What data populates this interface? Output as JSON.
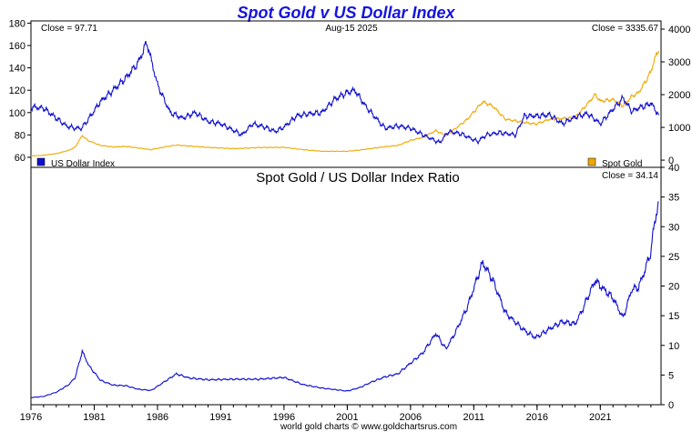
{
  "chart_data": [
    {
      "type": "line",
      "title": "Spot Gold v US Dollar Index",
      "date_label": "Aug-15  2025",
      "left_close_label": "Close = 97.71",
      "right_close_label": "Close = 3335.67",
      "series": [
        {
          "name": "US Dollar Index",
          "axis": "left",
          "color": "#1010d0",
          "x": [
            1976.0,
            1977.0,
            1978.0,
            1978.8,
            1979.5,
            1980.0,
            1980.6,
            1981.5,
            1982.5,
            1983.5,
            1984.5,
            1985.15,
            1986.0,
            1987.0,
            1988.0,
            1989.0,
            1990.0,
            1991.0,
            1992.7,
            1993.5,
            1994.5,
            1995.3,
            1996.0,
            1997.0,
            1998.0,
            1999.0,
            2000.0,
            2001.0,
            2001.6,
            2002.5,
            2003.5,
            2004.0,
            2005.0,
            2006.0,
            2007.0,
            2008.3,
            2009.0,
            2010.0,
            2011.3,
            2012.0,
            2013.0,
            2014.3,
            2015.0,
            2016.0,
            2017.0,
            2018.0,
            2019.0,
            2020.0,
            2021.0,
            2022.0,
            2022.8,
            2023.5,
            2024.0,
            2024.8,
            2025.0,
            2025.3,
            2025.62
          ],
          "values": [
            105,
            104,
            95,
            88,
            86,
            86,
            95,
            110,
            120,
            131,
            145,
            163,
            125,
            100,
            95,
            100,
            92,
            90,
            80,
            90,
            87,
            83,
            87,
            97,
            99,
            100,
            112,
            118,
            120,
            105,
            92,
            86,
            88,
            86,
            80,
            73,
            83,
            81,
            74,
            80,
            82,
            80,
            97,
            97,
            98,
            90,
            96,
            99,
            90,
            103,
            113,
            101,
            104,
            107,
            109,
            103,
            97.71
          ]
        },
        {
          "name": "Spot Gold",
          "axis": "right",
          "color": "#f0a800",
          "x": [
            1976.0,
            1977.0,
            1978.0,
            1979.0,
            1979.5,
            1980.05,
            1980.5,
            1981.5,
            1982.5,
            1983.5,
            1984.5,
            1985.5,
            1986.5,
            1987.5,
            1988.5,
            1990.0,
            1992.0,
            1994.0,
            1996.0,
            1997.5,
            1999.0,
            2001.0,
            2002.0,
            2003.0,
            2004.0,
            2005.0,
            2006.0,
            2007.0,
            2008.0,
            2008.8,
            2009.5,
            2010.5,
            2011.7,
            2012.5,
            2013.5,
            2015.0,
            2015.9,
            2017.0,
            2018.0,
            2019.0,
            2019.5,
            2020.6,
            2021.0,
            2022.0,
            2022.8,
            2023.5,
            2024.0,
            2024.5,
            2025.0,
            2025.3,
            2025.62
          ],
          "values": [
            130,
            150,
            200,
            300,
            400,
            750,
            600,
            450,
            400,
            420,
            370,
            320,
            400,
            460,
            430,
            390,
            350,
            385,
            390,
            320,
            270,
            270,
            310,
            360,
            410,
            450,
            600,
            700,
            900,
            750,
            950,
            1250,
            1780,
            1650,
            1250,
            1150,
            1100,
            1250,
            1270,
            1300,
            1500,
            2000,
            1800,
            1850,
            1650,
            1950,
            2050,
            2350,
            2700,
            3100,
            3335.67
          ]
        }
      ],
      "x_range": [
        1976.0,
        2025.8
      ],
      "y_left": {
        "ylim": [
          51,
          182
        ],
        "ticks": [
          "60",
          "80",
          "100",
          "120",
          "140",
          "160",
          "180"
        ]
      },
      "y_right": {
        "ylim": [
          -220,
          4250
        ],
        "ticks": [
          "0",
          "1000",
          "2000",
          "3000",
          "4000"
        ]
      },
      "legend": [
        {
          "label": "US Dollar Index",
          "position": "bottom-left"
        },
        {
          "label": "Spot Gold",
          "position": "bottom-right"
        }
      ],
      "grid": false
    },
    {
      "type": "line",
      "title": "Spot Gold  /  US Dollar Index Ratio",
      "close_label": "Close = 34.14",
      "series": [
        {
          "color": "#1010d0",
          "x": [
            1976.0,
            1977.0,
            1978.0,
            1979.0,
            1979.5,
            1980.05,
            1980.6,
            1981.5,
            1982.5,
            1983.5,
            1984.5,
            1985.5,
            1986.5,
            1987.5,
            1988.5,
            1990.0,
            1992.0,
            1994.0,
            1996.0,
            1997.5,
            1999.0,
            2001.0,
            2002.0,
            2003.0,
            2004.0,
            2005.0,
            2006.0,
            2007.0,
            2008.0,
            2008.8,
            2009.5,
            2010.5,
            2011.7,
            2012.5,
            2013.5,
            2015.0,
            2015.9,
            2017.0,
            2018.0,
            2019.0,
            2019.5,
            2020.6,
            2021.0,
            2022.0,
            2022.8,
            2023.5,
            2024.0,
            2024.5,
            2025.0,
            2025.3,
            2025.62
          ],
          "values": [
            1.2,
            1.4,
            2.1,
            3.4,
            4.6,
            9.0,
            6.5,
            4.1,
            3.3,
            3.2,
            2.6,
            2.4,
            3.8,
            5.2,
            4.5,
            4.2,
            4.3,
            4.3,
            4.6,
            3.4,
            2.8,
            2.3,
            2.9,
            3.9,
            4.7,
            5.2,
            7.0,
            8.8,
            12.0,
            9.4,
            12.0,
            16.5,
            24.0,
            21.0,
            15.5,
            12.5,
            11.3,
            12.8,
            14.0,
            13.6,
            15.6,
            21.0,
            20.0,
            18.0,
            14.6,
            19.5,
            19.7,
            22.5,
            25.8,
            31.0,
            34.14
          ]
        }
      ],
      "x_range": [
        1976.0,
        2025.8
      ],
      "ylim": [
        0,
        40
      ],
      "y_ticks": [
        "0",
        "5",
        "10",
        "15",
        "20",
        "25",
        "30",
        "35",
        "40"
      ],
      "x_ticks": [
        {
          "value": 1976,
          "label": "1976"
        },
        {
          "value": 1981,
          "label": "1981"
        },
        {
          "value": 1986,
          "label": "1986"
        },
        {
          "value": 1991,
          "label": "1991"
        },
        {
          "value": 1996,
          "label": "1996"
        },
        {
          "value": 2001,
          "label": "2001"
        },
        {
          "value": 2006,
          "label": "2006"
        },
        {
          "value": 2011,
          "label": "2011"
        },
        {
          "value": 2016,
          "label": "2016"
        },
        {
          "value": 2021,
          "label": "2021"
        }
      ],
      "grid": false
    }
  ],
  "footer": "world gold charts © www.goldchartsrus.com"
}
